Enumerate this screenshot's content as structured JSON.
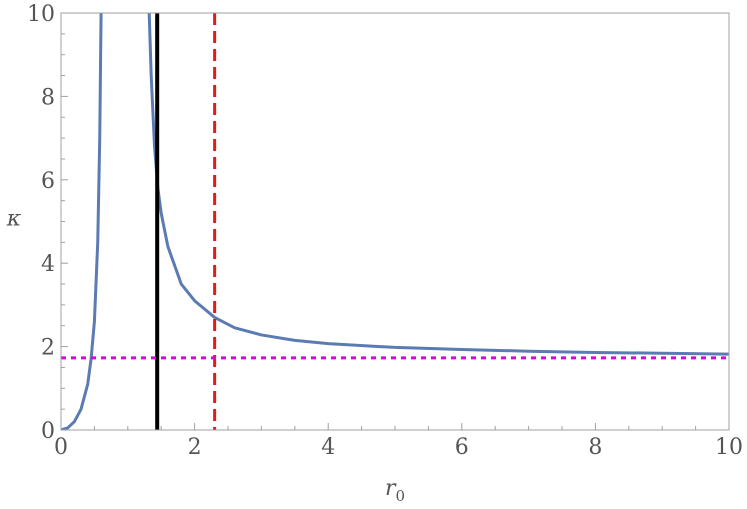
{
  "chart_data": {
    "type": "line",
    "xlabel": "r",
    "xlabel_subscript": "0",
    "ylabel": "κ",
    "xlim": [
      0,
      10
    ],
    "ylim": [
      0,
      10
    ],
    "x_ticks": [
      "0",
      "2",
      "4",
      "6",
      "8",
      "10"
    ],
    "y_ticks": [
      "0",
      "2",
      "4",
      "6",
      "8",
      "10"
    ],
    "grid": false,
    "series": [
      {
        "style": "solid",
        "color": "#5b7bb2",
        "segments": [
          [
            [
              0.0,
              0.0
            ],
            [
              0.1,
              0.05
            ],
            [
              0.2,
              0.2
            ],
            [
              0.3,
              0.5
            ],
            [
              0.4,
              1.1
            ],
            [
              0.45,
              1.7
            ],
            [
              0.5,
              2.6
            ],
            [
              0.55,
              4.5
            ],
            [
              0.58,
              7.0
            ],
            [
              0.6,
              10.0
            ]
          ],
          [
            [
              1.32,
              10.0
            ],
            [
              1.35,
              8.5
            ],
            [
              1.4,
              6.8
            ],
            [
              1.45,
              5.8
            ],
            [
              1.5,
              5.2
            ],
            [
              1.6,
              4.4
            ],
            [
              1.8,
              3.5
            ],
            [
              2.0,
              3.1
            ],
            [
              2.3,
              2.7
            ],
            [
              2.6,
              2.45
            ],
            [
              3.0,
              2.28
            ],
            [
              3.5,
              2.15
            ],
            [
              4.0,
              2.07
            ],
            [
              5.0,
              1.98
            ],
            [
              6.0,
              1.93
            ],
            [
              7.0,
              1.89
            ],
            [
              8.0,
              1.86
            ],
            [
              9.0,
              1.84
            ],
            [
              10.0,
              1.82
            ]
          ]
        ]
      }
    ],
    "reference_lines": [
      {
        "orientation": "vertical",
        "value": 1.44,
        "style": "solid",
        "color": "#000000"
      },
      {
        "orientation": "vertical",
        "value": 2.3,
        "style": "dashed",
        "color": "#e31a1c"
      },
      {
        "orientation": "horizontal",
        "value": 1.73,
        "style": "dotted",
        "color": "#e000e0"
      }
    ]
  }
}
